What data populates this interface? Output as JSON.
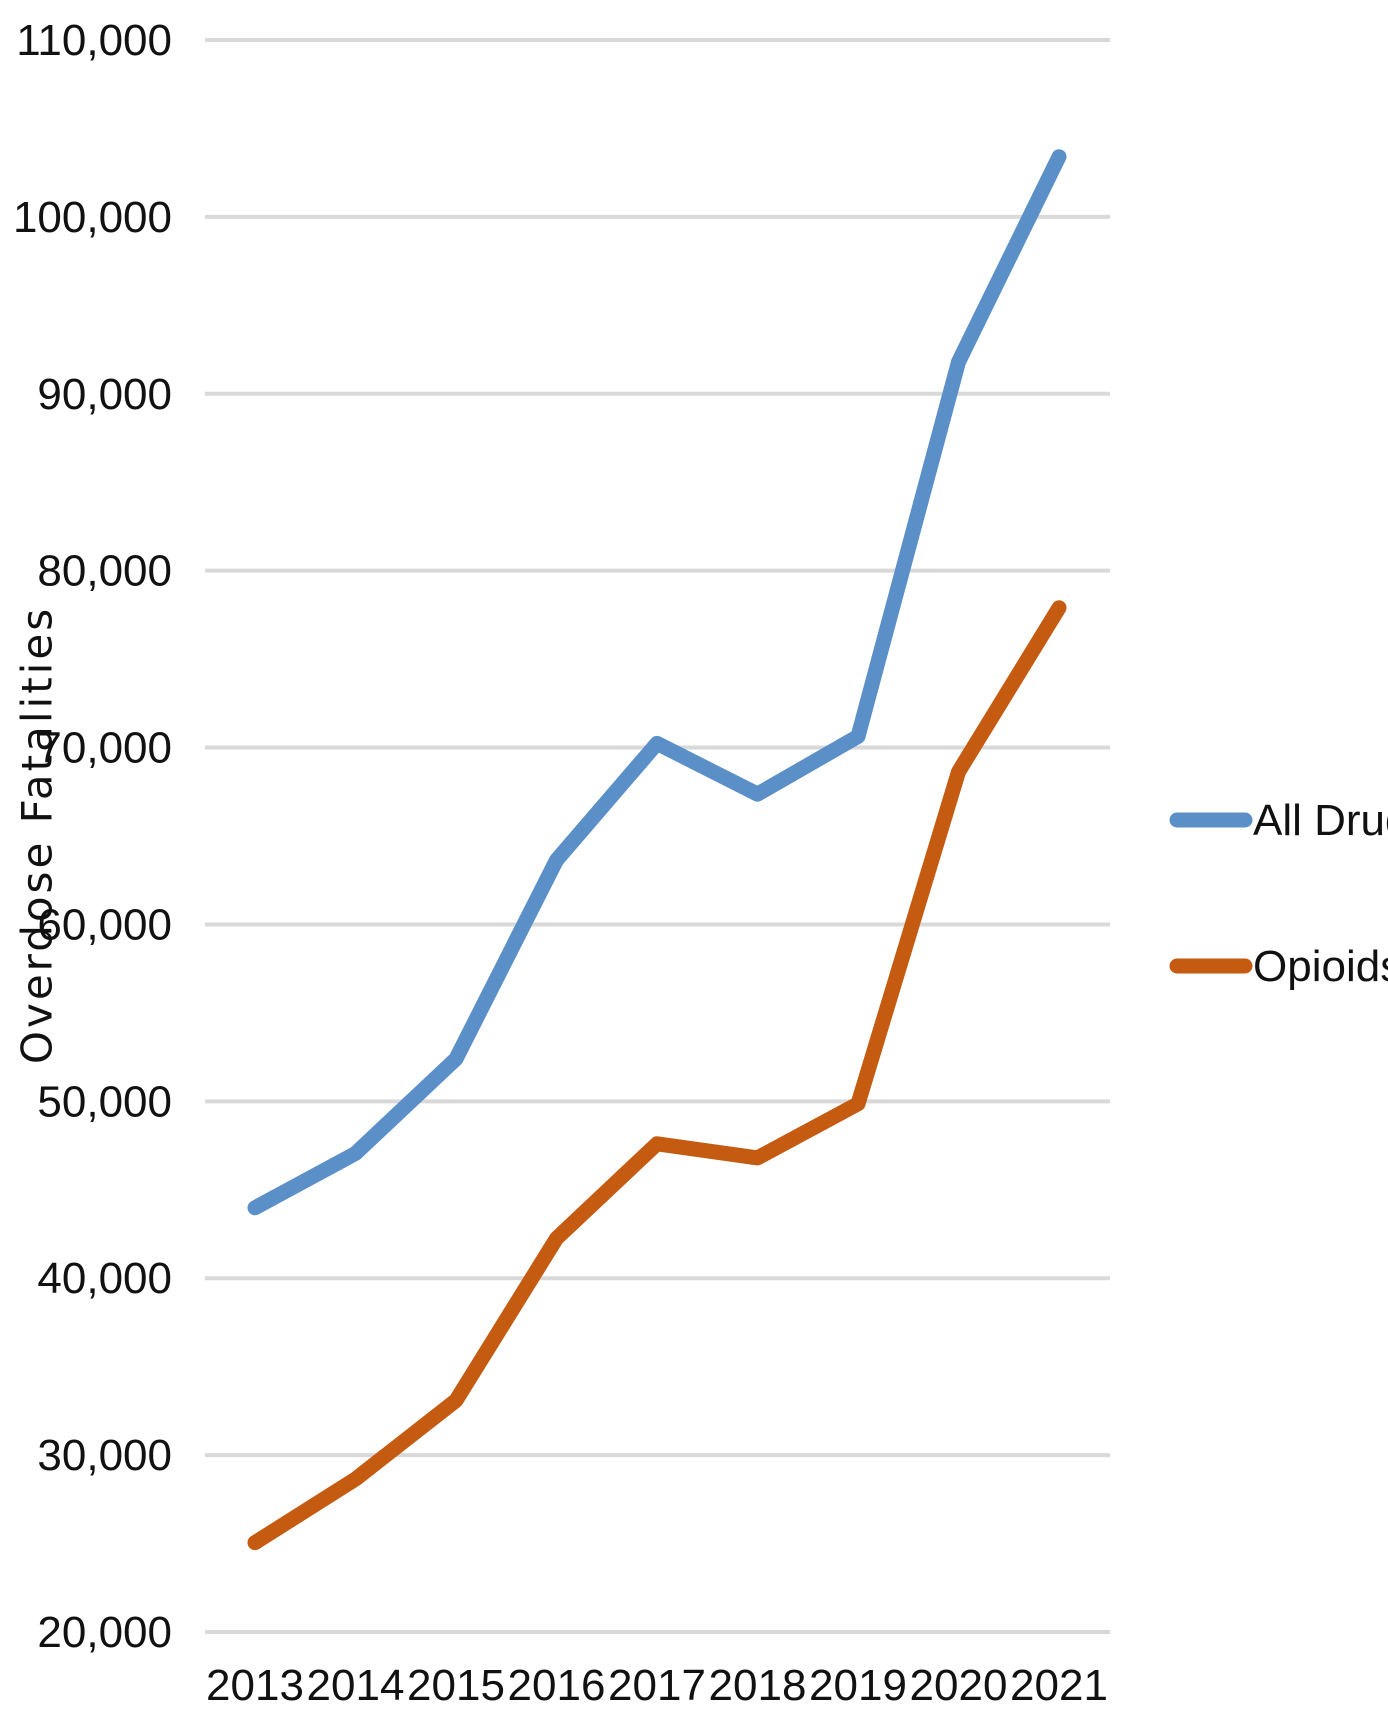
{
  "chart_data": {
    "type": "line",
    "title": "",
    "xlabel": "",
    "ylabel": "Overdose Fatalities",
    "categories": [
      "2013",
      "2014",
      "2015",
      "2016",
      "2017",
      "2018",
      "2019",
      "2020",
      "2021"
    ],
    "y_ticks": [
      "20,000",
      "30,000",
      "40,000",
      "50,000",
      "60,000",
      "70,000",
      "80,000",
      "90,000",
      "100,000",
      "110,000"
    ],
    "ylim": [
      20000,
      110000
    ],
    "grid": true,
    "legend_position": "right",
    "series": [
      {
        "name": "All Drugs",
        "color": "#5b8fc7",
        "values": [
          43982,
          47055,
          52404,
          63632,
          70237,
          67367,
          70630,
          91799,
          103400
        ]
      },
      {
        "name": "Opioids",
        "color": "#c55a11",
        "values": [
          25052,
          28647,
          33091,
          42249,
          47600,
          46802,
          49860,
          68630,
          77900
        ]
      }
    ]
  }
}
